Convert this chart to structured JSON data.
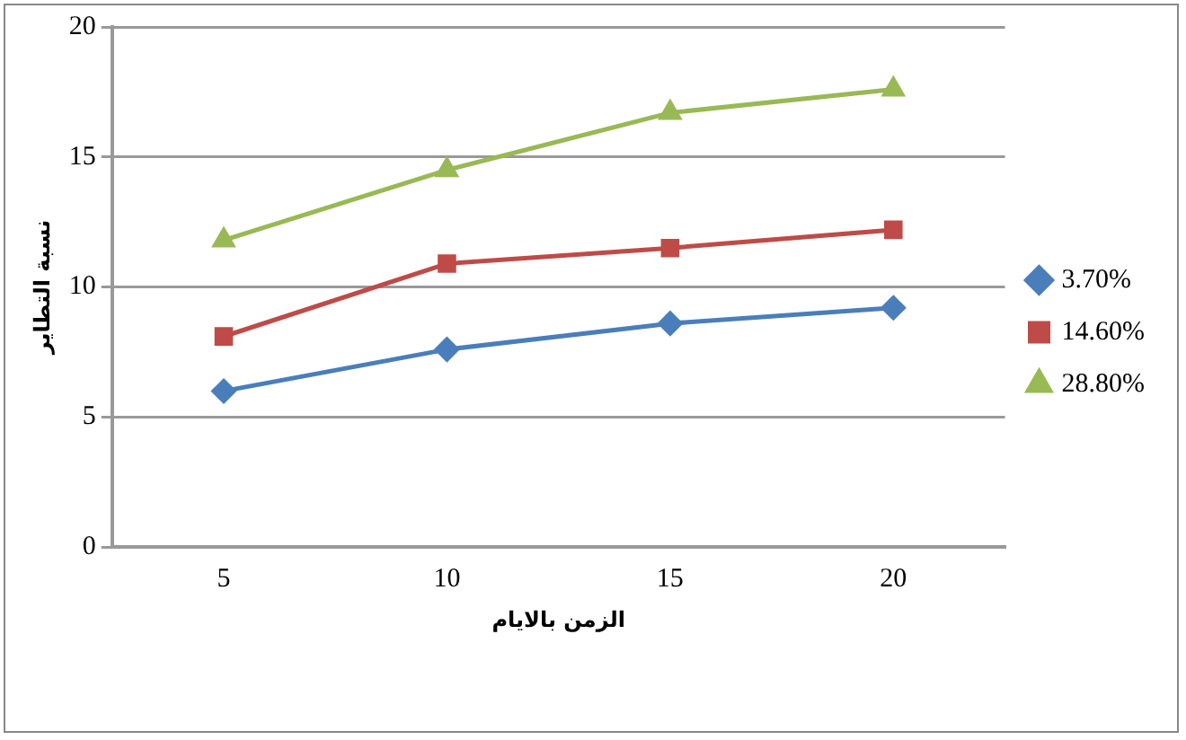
{
  "chart_data": {
    "type": "line",
    "xlabel": "الزمن بالايام",
    "ylabel": "نسبة التطاير",
    "categories": [
      "5",
      "10",
      "15",
      "20"
    ],
    "series": [
      {
        "name": "3.70%",
        "color": "#4a7ebb",
        "values": [
          6.0,
          7.6,
          8.6,
          9.2
        ],
        "marker": "diamond"
      },
      {
        "name": "14.60%",
        "color": "#be4b48",
        "values": [
          8.1,
          10.9,
          11.5,
          12.2
        ],
        "marker": "square"
      },
      {
        "name": "28.80%",
        "color": "#98b954",
        "values": [
          11.8,
          14.5,
          16.7,
          17.6
        ],
        "marker": "triangle"
      }
    ],
    "ylim": [
      0,
      20
    ],
    "yticks": [
      0,
      5,
      10,
      15,
      20
    ],
    "grid": "y",
    "legend": "right"
  }
}
